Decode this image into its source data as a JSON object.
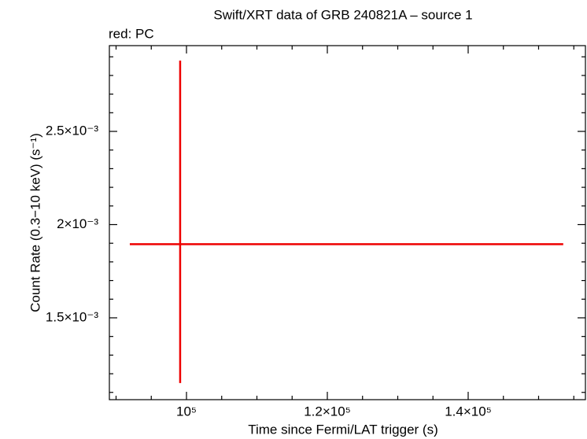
{
  "chart_data": {
    "type": "scatter",
    "title": "Swift/XRT data of GRB 240821A – source 1",
    "subtitle": "red: PC",
    "x_label": "Time since Fermi/LAT trigger (s)",
    "y_label": "Count Rate (0.3−10 keV) (s⁻¹)",
    "series": [
      {
        "name": "PC",
        "color": "#ee0000",
        "x": [
          99100
        ],
        "x_err_minus": [
          7150
        ],
        "x_err_plus": [
          54400
        ],
        "values": [
          0.001895
        ],
        "y_err_minus": [
          0.000745
        ],
        "y_err_plus": [
          0.000985
        ]
      }
    ],
    "xlim": [
      89050,
      156650
    ],
    "ylim": [
      0.001061,
      0.00296
    ],
    "xticks": [
      {
        "value": 100000,
        "label": "10⁵"
      },
      {
        "value": 120000,
        "label": "1.2×10⁵"
      },
      {
        "value": 140000,
        "label": "1.4×10⁵"
      }
    ],
    "yticks": [
      {
        "value": 0.0015,
        "label": "1.5×10⁻³"
      },
      {
        "value": 0.002,
        "label": "2×10⁻³"
      },
      {
        "value": 0.0025,
        "label": "2.5×10⁻³"
      }
    ],
    "xminorticks": [
      90000,
      95000,
      105000,
      110000,
      115000,
      125000,
      130000,
      135000,
      145000,
      150000,
      155000
    ],
    "yminorticks": [
      0.0011,
      0.0012,
      0.0013,
      0.0014,
      0.0016,
      0.0017,
      0.0018,
      0.0019,
      0.0021,
      0.0022,
      0.0023,
      0.0024,
      0.0026,
      0.0027,
      0.0028,
      0.0029
    ]
  }
}
